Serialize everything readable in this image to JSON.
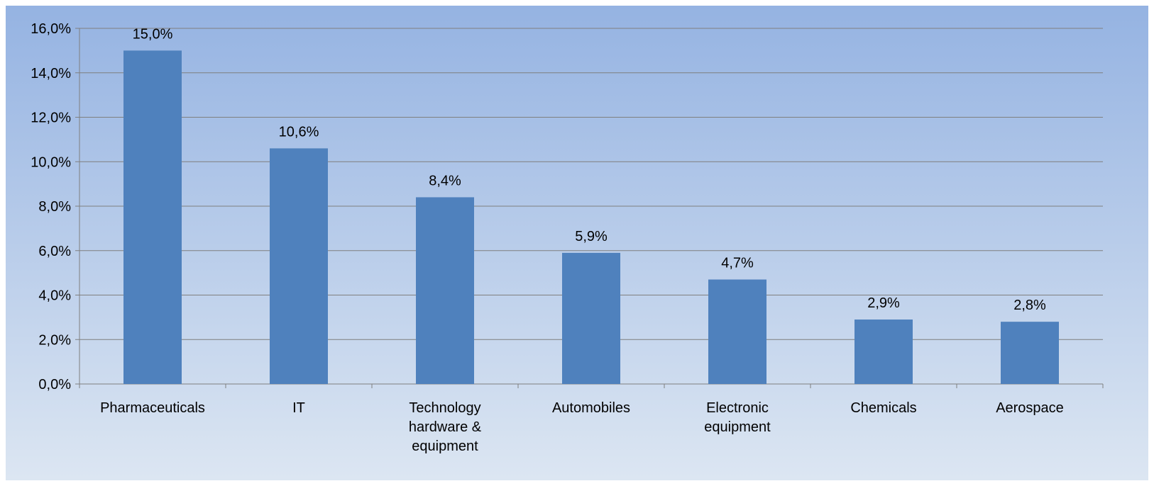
{
  "chart_data": {
    "type": "bar",
    "title": "",
    "xlabel": "",
    "ylabel": "",
    "categories": [
      [
        "Pharmaceuticals"
      ],
      [
        "IT"
      ],
      [
        "Technology",
        "hardware &",
        "equipment"
      ],
      [
        "Automobiles"
      ],
      [
        "Electronic",
        "equipment"
      ],
      [
        "Chemicals"
      ],
      [
        "Aerospace"
      ]
    ],
    "values": [
      15.0,
      10.6,
      8.4,
      5.9,
      4.7,
      2.9,
      2.8
    ],
    "data_labels": [
      "15,0%",
      "10,6%",
      "8,4%",
      "5,9%",
      "4,7%",
      "2,9%",
      "2,8%"
    ],
    "ylim": [
      0,
      16
    ],
    "yticks": [
      0,
      2,
      4,
      6,
      8,
      10,
      12,
      14,
      16
    ],
    "ytick_labels": [
      "0,0%",
      "2,0%",
      "4,0%",
      "6,0%",
      "8,0%",
      "10,0%",
      "12,0%",
      "14,0%",
      "16,0%"
    ],
    "grid": true,
    "legend": "none",
    "colors": {
      "bar": "#4f81bd",
      "grid": "#7f7f7f",
      "background_top": "#95b3e2",
      "background_bottom": "#dce6f2"
    }
  }
}
